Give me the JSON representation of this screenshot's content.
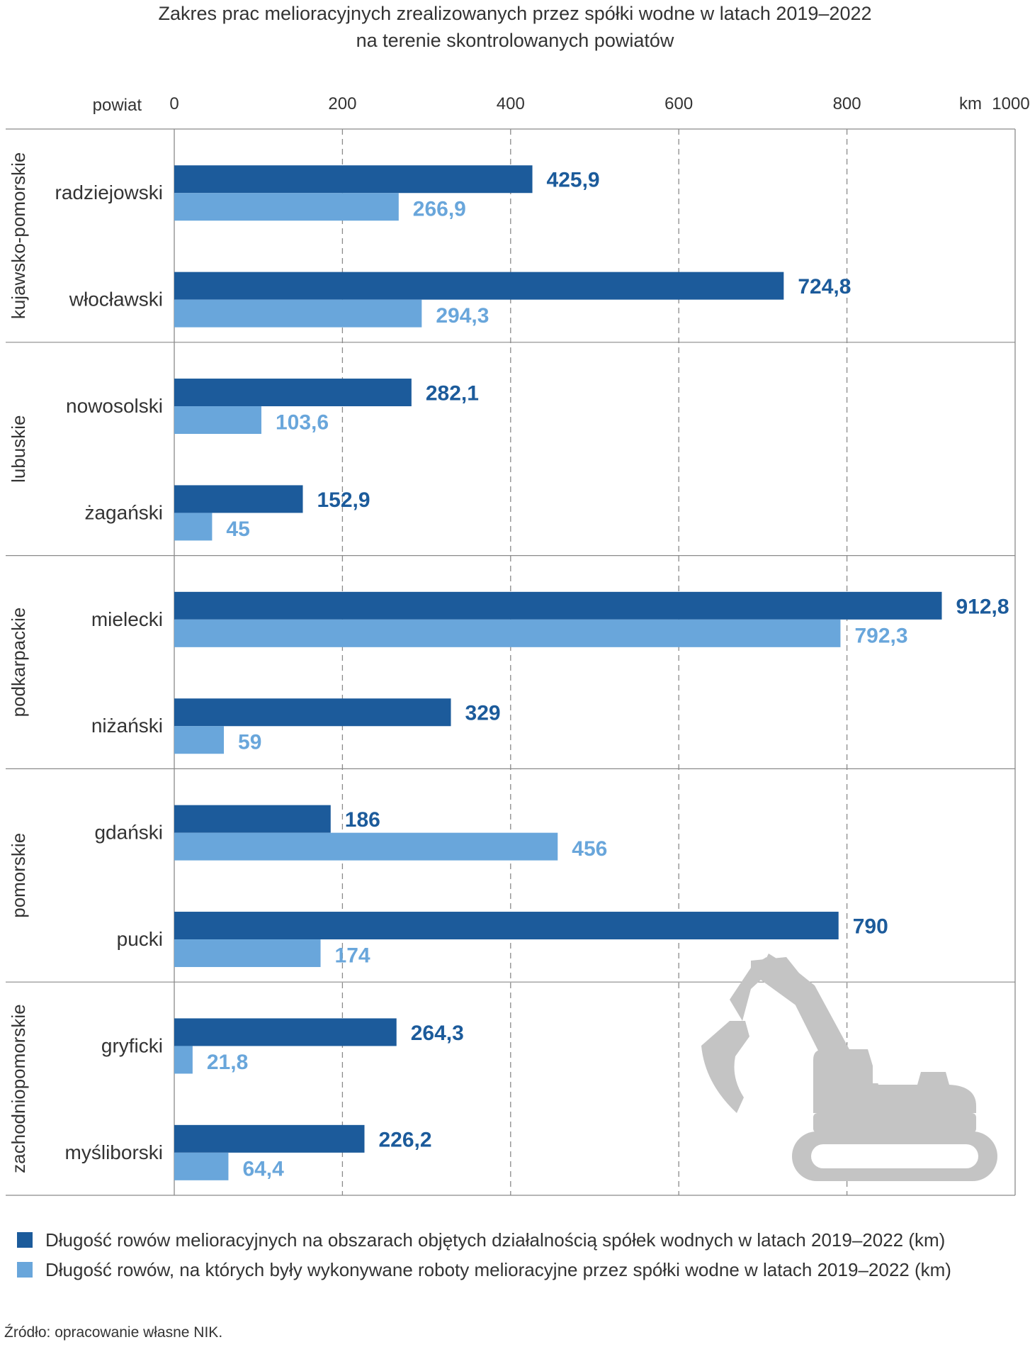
{
  "title": {
    "line1": "Zakres prac melioracyjnych zrealizowanych przez spółki wodne w latach 2019–2022",
    "line2": "na terenie skontrolowanych powiatów"
  },
  "colors": {
    "series1": "#1c5b9b",
    "series2": "#69a6db",
    "grid": "#8a8a8a",
    "label1": "#1c5b9b",
    "label2": "#69a6db",
    "excavator": "#c4c4c4"
  },
  "icon": "excavator-icon",
  "chart_data": {
    "type": "bar",
    "orientation": "horizontal",
    "title": "Zakres prac melioracyjnych zrealizowanych przez spółki wodne w latach 2019–2022 na terenie skontrolowanych powiatów",
    "xlabel": "km",
    "ylabel": "powiat",
    "xlim": [
      0,
      1000
    ],
    "x_ticks": [
      "0",
      "200",
      "400",
      "600",
      "800",
      "1000"
    ],
    "x_unit_label": "km",
    "y_header": "powiat",
    "grid": "vertical dashed",
    "legend_position": "bottom",
    "groups": [
      {
        "name": "kujawsko-pomorskie",
        "powiaty": [
          "radziejowski",
          "włocławski"
        ]
      },
      {
        "name": "lubuskie",
        "powiaty": [
          "nowosolski",
          "żagański"
        ]
      },
      {
        "name": "podkarpackie",
        "powiaty": [
          "mielecki",
          "niżański"
        ]
      },
      {
        "name": "pomorskie",
        "powiaty": [
          "gdański",
          "pucki"
        ]
      },
      {
        "name": "zachodniopomorskie",
        "powiaty": [
          "gryficki",
          "myśliborski"
        ]
      }
    ],
    "categories": [
      "radziejowski",
      "włocławski",
      "nowosolski",
      "żagański",
      "mielecki",
      "niżański",
      "gdański",
      "pucki",
      "gryficki",
      "myśliborski"
    ],
    "series": [
      {
        "name": "Długość rowów melioracyjnych na obszarach objętych działalnością spółek wodnych w latach 2019–2022 (km)",
        "values": [
          425.9,
          724.8,
          282.1,
          152.9,
          912.8,
          329,
          186,
          790,
          264.3,
          226.2
        ],
        "labels": [
          "425,9",
          "724,8",
          "282,1",
          "152,9",
          "912,8",
          "329",
          "186",
          "790",
          "264,3",
          "226,2"
        ]
      },
      {
        "name": "Długość rowów, na których były wykonywane roboty melioracyjne przez spółki wodne w latach 2019–2022 (km)",
        "values": [
          266.9,
          294.3,
          103.6,
          45,
          792.3,
          59,
          456,
          174,
          21.8,
          64.4
        ],
        "labels": [
          "266,9",
          "294,3",
          "103,6",
          "45",
          "792,3",
          "59",
          "456",
          "174",
          "21,8",
          "64,4"
        ]
      }
    ]
  },
  "legend": {
    "item1": "Długość rowów melioracyjnych na obszarach objętych działalnością spółek wodnych w latach 2019–2022 (km)",
    "item2": "Długość rowów, na których były wykonywane roboty melioracyjne przez spółki wodne w latach 2019–2022 (km)"
  },
  "source": "Źródło: opracowanie własne NIK."
}
